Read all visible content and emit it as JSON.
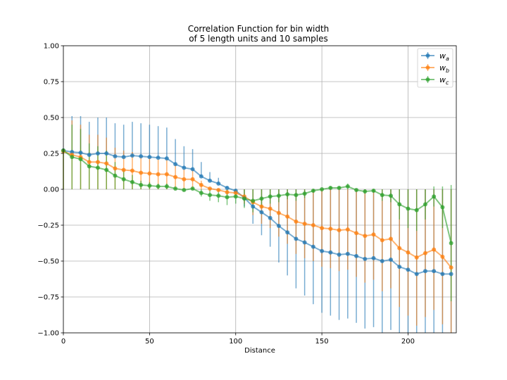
{
  "chart_data": {
    "type": "line",
    "title_line1": "Correlation Function for bin width",
    "title_line2": "of 5 length units and 10 samples",
    "xlabel": "Distance",
    "ylabel": "",
    "xlim": [
      0,
      228
    ],
    "ylim": [
      -1.0,
      1.0
    ],
    "xticks": [
      0,
      50,
      100,
      150,
      200
    ],
    "yticks": [
      -1.0,
      -0.75,
      -0.5,
      -0.25,
      0.0,
      0.25,
      0.5,
      0.75,
      1.0
    ],
    "xtick_labels": [
      "0",
      "50",
      "100",
      "150",
      "200"
    ],
    "ytick_labels": [
      "−1.00",
      "−0.75",
      "−0.50",
      "−0.25",
      "0.00",
      "0.25",
      "0.50",
      "0.75",
      "1.00"
    ],
    "grid": true,
    "legend_position": "top-right",
    "x": [
      0,
      5,
      10,
      15,
      20,
      25,
      30,
      35,
      40,
      45,
      50,
      55,
      60,
      65,
      70,
      75,
      80,
      85,
      90,
      95,
      100,
      105,
      110,
      115,
      120,
      125,
      130,
      135,
      140,
      145,
      150,
      155,
      160,
      165,
      170,
      175,
      180,
      185,
      190,
      195,
      200,
      205,
      210,
      215,
      220,
      225
    ],
    "series": [
      {
        "name": "w_a",
        "label_base": "w",
        "label_sub": "a",
        "color": "#1f77b4",
        "values": [
          0.27,
          0.26,
          0.255,
          0.24,
          0.25,
          0.25,
          0.23,
          0.225,
          0.235,
          0.23,
          0.225,
          0.22,
          0.215,
          0.175,
          0.15,
          0.14,
          0.09,
          0.06,
          0.04,
          0.01,
          -0.01,
          -0.06,
          -0.12,
          -0.16,
          -0.2,
          -0.255,
          -0.3,
          -0.345,
          -0.37,
          -0.4,
          -0.43,
          -0.44,
          -0.455,
          -0.45,
          -0.465,
          -0.485,
          -0.48,
          -0.5,
          -0.49,
          -0.54,
          -0.56,
          -0.59,
          -0.57,
          -0.57,
          -0.59,
          -0.59
        ],
        "err_low": [
          0.27,
          0.26,
          0.255,
          0.24,
          0.25,
          0.25,
          0.23,
          0.225,
          0.235,
          0.23,
          0.225,
          0.22,
          0.215,
          0.175,
          0.15,
          0.14,
          0.09,
          0.06,
          0.04,
          0.01,
          0,
          0,
          0,
          0,
          0,
          0,
          0,
          0,
          0,
          0,
          0,
          0,
          0,
          0,
          0,
          0,
          0,
          0,
          0,
          0,
          0,
          0,
          0,
          0,
          0,
          0
        ],
        "err_high": [
          0.27,
          0.51,
          0.51,
          0.47,
          0.5,
          0.5,
          0.46,
          0.45,
          0.47,
          0.46,
          0.45,
          0.44,
          0.43,
          0.35,
          0.3,
          0.28,
          0.19,
          0.12,
          0.08,
          0.02,
          0,
          0,
          0,
          0,
          0,
          0,
          0,
          0,
          0,
          0,
          0,
          0,
          0,
          0,
          0,
          0,
          0,
          0,
          0,
          0,
          0,
          0,
          0,
          0,
          0,
          0
        ],
        "err_neg_low": [
          0,
          0,
          0,
          0,
          0,
          0,
          0,
          0,
          0,
          0,
          0,
          0,
          0,
          0,
          0,
          0,
          0,
          0,
          0,
          0,
          0,
          -0.12,
          -0.24,
          -0.32,
          -0.4,
          -0.51,
          -0.6,
          -0.69,
          -0.74,
          -0.8,
          -0.86,
          -0.88,
          -0.91,
          -0.9,
          -0.93,
          -0.97,
          -0.96,
          -1.0,
          -0.98,
          -1.0,
          -1.0,
          -1.0,
          -1.0,
          -1.0,
          -1.0,
          -1.0
        ],
        "err_neg_high": [
          0,
          0,
          0,
          0,
          0,
          0,
          0,
          0,
          0,
          0,
          0,
          0,
          0,
          0,
          0,
          0,
          0,
          0,
          0,
          0,
          -0.01,
          0,
          0,
          0,
          0,
          0,
          0,
          0,
          0,
          0,
          0,
          0,
          0,
          0,
          0,
          0,
          0,
          0,
          0,
          0,
          0,
          0,
          0,
          0,
          0,
          0
        ]
      },
      {
        "name": "w_b",
        "label_base": "w",
        "label_sub": "b",
        "color": "#ff7f0e",
        "values": [
          0.265,
          0.24,
          0.225,
          0.19,
          0.19,
          0.18,
          0.145,
          0.135,
          0.13,
          0.115,
          0.11,
          0.105,
          0.105,
          0.085,
          0.07,
          0.07,
          0.03,
          0.005,
          -0.005,
          -0.02,
          -0.025,
          -0.05,
          -0.09,
          -0.12,
          -0.135,
          -0.165,
          -0.19,
          -0.225,
          -0.24,
          -0.25,
          -0.27,
          -0.275,
          -0.285,
          -0.28,
          -0.305,
          -0.325,
          -0.315,
          -0.355,
          -0.345,
          -0.41,
          -0.44,
          -0.475,
          -0.445,
          -0.42,
          -0.47,
          -0.545
        ],
        "err_low": [
          0,
          0,
          0,
          0,
          0,
          0,
          0,
          0,
          0,
          0,
          0,
          0,
          0,
          0,
          0,
          0,
          0,
          0,
          0,
          0,
          0,
          0,
          0,
          0,
          0,
          0,
          0,
          0,
          0,
          0,
          0,
          0,
          0,
          0,
          0,
          0,
          0,
          0,
          0,
          0,
          0,
          0,
          0,
          0,
          0,
          0
        ],
        "err_high": [
          0.265,
          0.48,
          0.45,
          0.38,
          0.38,
          0.36,
          0.29,
          0.27,
          0.26,
          0.23,
          0.22,
          0.21,
          0.21,
          0.17,
          0.14,
          0.14,
          0.06,
          0.01,
          0,
          0,
          0,
          0,
          0,
          0,
          0,
          0,
          0,
          0,
          0,
          0,
          0,
          0,
          0,
          0,
          0,
          0,
          0,
          0,
          0,
          0,
          0,
          0,
          0,
          0,
          0,
          0
        ],
        "err_neg_low": [
          0,
          0,
          0,
          0,
          0,
          0,
          0,
          0,
          0,
          0,
          0,
          0,
          0,
          0,
          0,
          0,
          0,
          0,
          -0.01,
          -0.04,
          -0.05,
          -0.1,
          -0.18,
          -0.24,
          -0.27,
          -0.33,
          -0.38,
          -0.45,
          -0.48,
          -0.5,
          -0.54,
          -0.55,
          -0.57,
          -0.56,
          -0.61,
          -0.65,
          -0.63,
          -0.71,
          -0.69,
          -0.82,
          -0.88,
          -0.95,
          -0.89,
          -0.84,
          -0.94,
          -1.0
        ],
        "err_neg_high": [
          0,
          0,
          0,
          0,
          0,
          0,
          0,
          0,
          0,
          0,
          0,
          0,
          0,
          0,
          0,
          0,
          0,
          0,
          0,
          0,
          0,
          0,
          0,
          0,
          0,
          0,
          0,
          0,
          0,
          0,
          0,
          0,
          0,
          0,
          0,
          0,
          0,
          0,
          0,
          0,
          0,
          0,
          0,
          0,
          0,
          0
        ]
      },
      {
        "name": "w_c",
        "label_base": "w",
        "label_sub": "c",
        "color": "#2ca02c",
        "values": [
          0.27,
          0.225,
          0.21,
          0.16,
          0.15,
          0.135,
          0.095,
          0.07,
          0.05,
          0.03,
          0.025,
          0.02,
          0.02,
          0.005,
          -0.005,
          0.005,
          -0.025,
          -0.04,
          -0.045,
          -0.055,
          -0.05,
          -0.065,
          -0.08,
          -0.065,
          -0.05,
          -0.045,
          -0.035,
          -0.04,
          -0.03,
          -0.01,
          0.0,
          0.01,
          0.01,
          0.02,
          -0.005,
          -0.015,
          -0.01,
          -0.04,
          -0.045,
          -0.105,
          -0.135,
          -0.145,
          -0.105,
          -0.05,
          -0.125,
          -0.375
        ],
        "err_low": [
          0,
          0,
          0,
          0,
          0,
          0,
          0,
          0,
          0,
          0,
          0,
          0,
          0,
          0,
          0,
          0,
          0,
          0,
          0,
          0,
          0,
          0,
          0,
          0,
          0,
          0,
          0,
          0,
          0,
          0,
          0,
          0,
          0,
          0,
          0,
          0,
          0,
          0,
          0,
          0,
          0,
          0,
          0,
          0,
          0,
          0
        ],
        "err_high": [
          0.27,
          0.45,
          0.42,
          0.32,
          0.3,
          0.27,
          0.19,
          0.14,
          0.1,
          0.06,
          0.05,
          0.04,
          0.04,
          0.01,
          0,
          0.01,
          0,
          0,
          0,
          0,
          0,
          0,
          0,
          0,
          0,
          0,
          0,
          0,
          0,
          0,
          0,
          0.02,
          0.02,
          0.04,
          0,
          0,
          0,
          0,
          0,
          0,
          0,
          0,
          0,
          0.02,
          0.02,
          0.03
        ],
        "err_neg_low": [
          0,
          0,
          0,
          0,
          0,
          0,
          0,
          0,
          0,
          0,
          0,
          0,
          0,
          0,
          -0.01,
          0,
          -0.05,
          -0.08,
          -0.09,
          -0.11,
          -0.1,
          -0.13,
          -0.16,
          -0.13,
          -0.1,
          -0.09,
          -0.07,
          -0.08,
          -0.06,
          -0.02,
          0,
          0,
          0,
          0,
          -0.01,
          -0.03,
          -0.02,
          -0.08,
          -0.09,
          -0.21,
          -0.27,
          -0.29,
          -0.21,
          -0.12,
          -0.27,
          -0.78
        ],
        "err_neg_high": [
          0,
          0,
          0,
          0,
          0,
          0,
          0,
          0,
          0,
          0,
          0,
          0,
          0,
          0,
          0,
          0,
          0,
          0,
          0,
          0,
          0,
          0,
          0,
          0,
          0,
          0,
          0,
          0,
          0,
          0,
          0,
          0,
          0,
          0,
          0,
          0,
          0,
          0,
          0,
          0,
          0,
          0,
          0,
          0,
          0,
          0
        ]
      }
    ]
  }
}
